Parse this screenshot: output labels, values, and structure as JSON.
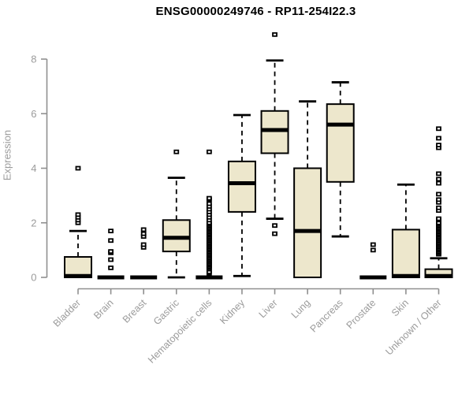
{
  "title": "ENSG00000249746 - RP11-254I22.3",
  "chart_data": {
    "type": "boxplot",
    "title": "ENSG00000249746 - RP11-254I22.3",
    "xlabel": "",
    "ylabel": "Expression",
    "yticks": [
      0,
      2,
      4,
      6,
      8
    ],
    "ylim": [
      0,
      9.2
    ],
    "grid": "off",
    "legend": "none",
    "categories": [
      "Bladder",
      "Brain",
      "Breast",
      "Gastric",
      "Hematopoietic cells",
      "Kidney",
      "Liver",
      "Lung",
      "Pancreas",
      "Prostate",
      "Skin",
      "Unknown / Other"
    ],
    "series": [
      {
        "name": "Bladder",
        "q1": 0,
        "median": 0.05,
        "q3": 0.75,
        "whisker_low": 0,
        "whisker_high": 1.7,
        "outliers": [
          2.0,
          2.1,
          2.2,
          2.3,
          4.0
        ]
      },
      {
        "name": "Brain",
        "q1": 0,
        "median": 0,
        "q3": 0,
        "whisker_low": 0,
        "whisker_high": 0,
        "outliers": [
          0.35,
          0.65,
          0.9,
          0.95,
          1.35,
          1.7
        ]
      },
      {
        "name": "Breast",
        "q1": 0,
        "median": 0,
        "q3": 0,
        "whisker_low": 0,
        "whisker_high": 0,
        "outliers": [
          1.1,
          1.2,
          1.5,
          1.6,
          1.75
        ]
      },
      {
        "name": "Gastric",
        "q1": 0.95,
        "median": 1.45,
        "q3": 2.1,
        "whisker_low": 0,
        "whisker_high": 3.65,
        "outliers": [
          4.6
        ]
      },
      {
        "name": "Hematopoietic cells",
        "q1": 0,
        "median": 0,
        "q3": 0,
        "whisker_low": 0,
        "whisker_high": 0,
        "outliers": [
          0.15,
          0.2,
          0.3,
          0.35,
          0.4,
          0.45,
          0.5,
          0.55,
          0.6,
          0.65,
          0.7,
          0.75,
          0.8,
          0.85,
          0.9,
          0.95,
          1.0,
          1.05,
          1.1,
          1.15,
          1.2,
          1.25,
          1.3,
          1.35,
          1.4,
          1.45,
          1.5,
          1.55,
          1.6,
          1.65,
          1.7,
          1.75,
          1.8,
          1.85,
          1.9,
          1.95,
          2.0,
          2.1,
          2.2,
          2.3,
          2.4,
          2.5,
          2.6,
          2.7,
          2.85,
          2.9,
          4.6
        ]
      },
      {
        "name": "Kidney",
        "q1": 2.4,
        "median": 3.45,
        "q3": 4.25,
        "whisker_low": 0.05,
        "whisker_high": 5.95,
        "outliers": []
      },
      {
        "name": "Liver",
        "q1": 4.55,
        "median": 5.4,
        "q3": 6.1,
        "whisker_low": 2.15,
        "whisker_high": 7.95,
        "outliers": [
          1.6,
          1.9,
          8.9
        ]
      },
      {
        "name": "Lung",
        "q1": 0,
        "median": 1.7,
        "q3": 4.0,
        "whisker_low": 0,
        "whisker_high": 6.45,
        "outliers": []
      },
      {
        "name": "Pancreas",
        "q1": 3.5,
        "median": 5.6,
        "q3": 6.35,
        "whisker_low": 1.5,
        "whisker_high": 7.15,
        "outliers": []
      },
      {
        "name": "Prostate",
        "q1": 0,
        "median": 0,
        "q3": 0,
        "whisker_low": 0,
        "whisker_high": 0,
        "outliers": [
          1.0,
          1.2
        ]
      },
      {
        "name": "Skin",
        "q1": 0,
        "median": 0.05,
        "q3": 1.75,
        "whisker_low": 0,
        "whisker_high": 3.4,
        "outliers": []
      },
      {
        "name": "Unknown / Other",
        "q1": 0,
        "median": 0.05,
        "q3": 0.3,
        "whisker_low": 0,
        "whisker_high": 0.7,
        "outliers": [
          0.85,
          0.9,
          0.95,
          1.0,
          1.05,
          1.1,
          1.15,
          1.2,
          1.25,
          1.3,
          1.35,
          1.4,
          1.45,
          1.5,
          1.55,
          1.6,
          1.65,
          1.7,
          1.75,
          1.8,
          1.85,
          1.9,
          1.95,
          2.0,
          2.1,
          2.15,
          2.45,
          2.55,
          2.75,
          2.85,
          3.05,
          3.45,
          3.6,
          3.8,
          4.75,
          4.85,
          5.1,
          5.45
        ]
      }
    ],
    "colors": {
      "box_fill": "#EDE7CC",
      "box_stroke": "#000000",
      "median": "#000000",
      "whisker": "#000000",
      "outlier": "#000000",
      "axis": "#8f8f8f",
      "tick_label": "#9b9b9b",
      "title": "#000000"
    }
  }
}
